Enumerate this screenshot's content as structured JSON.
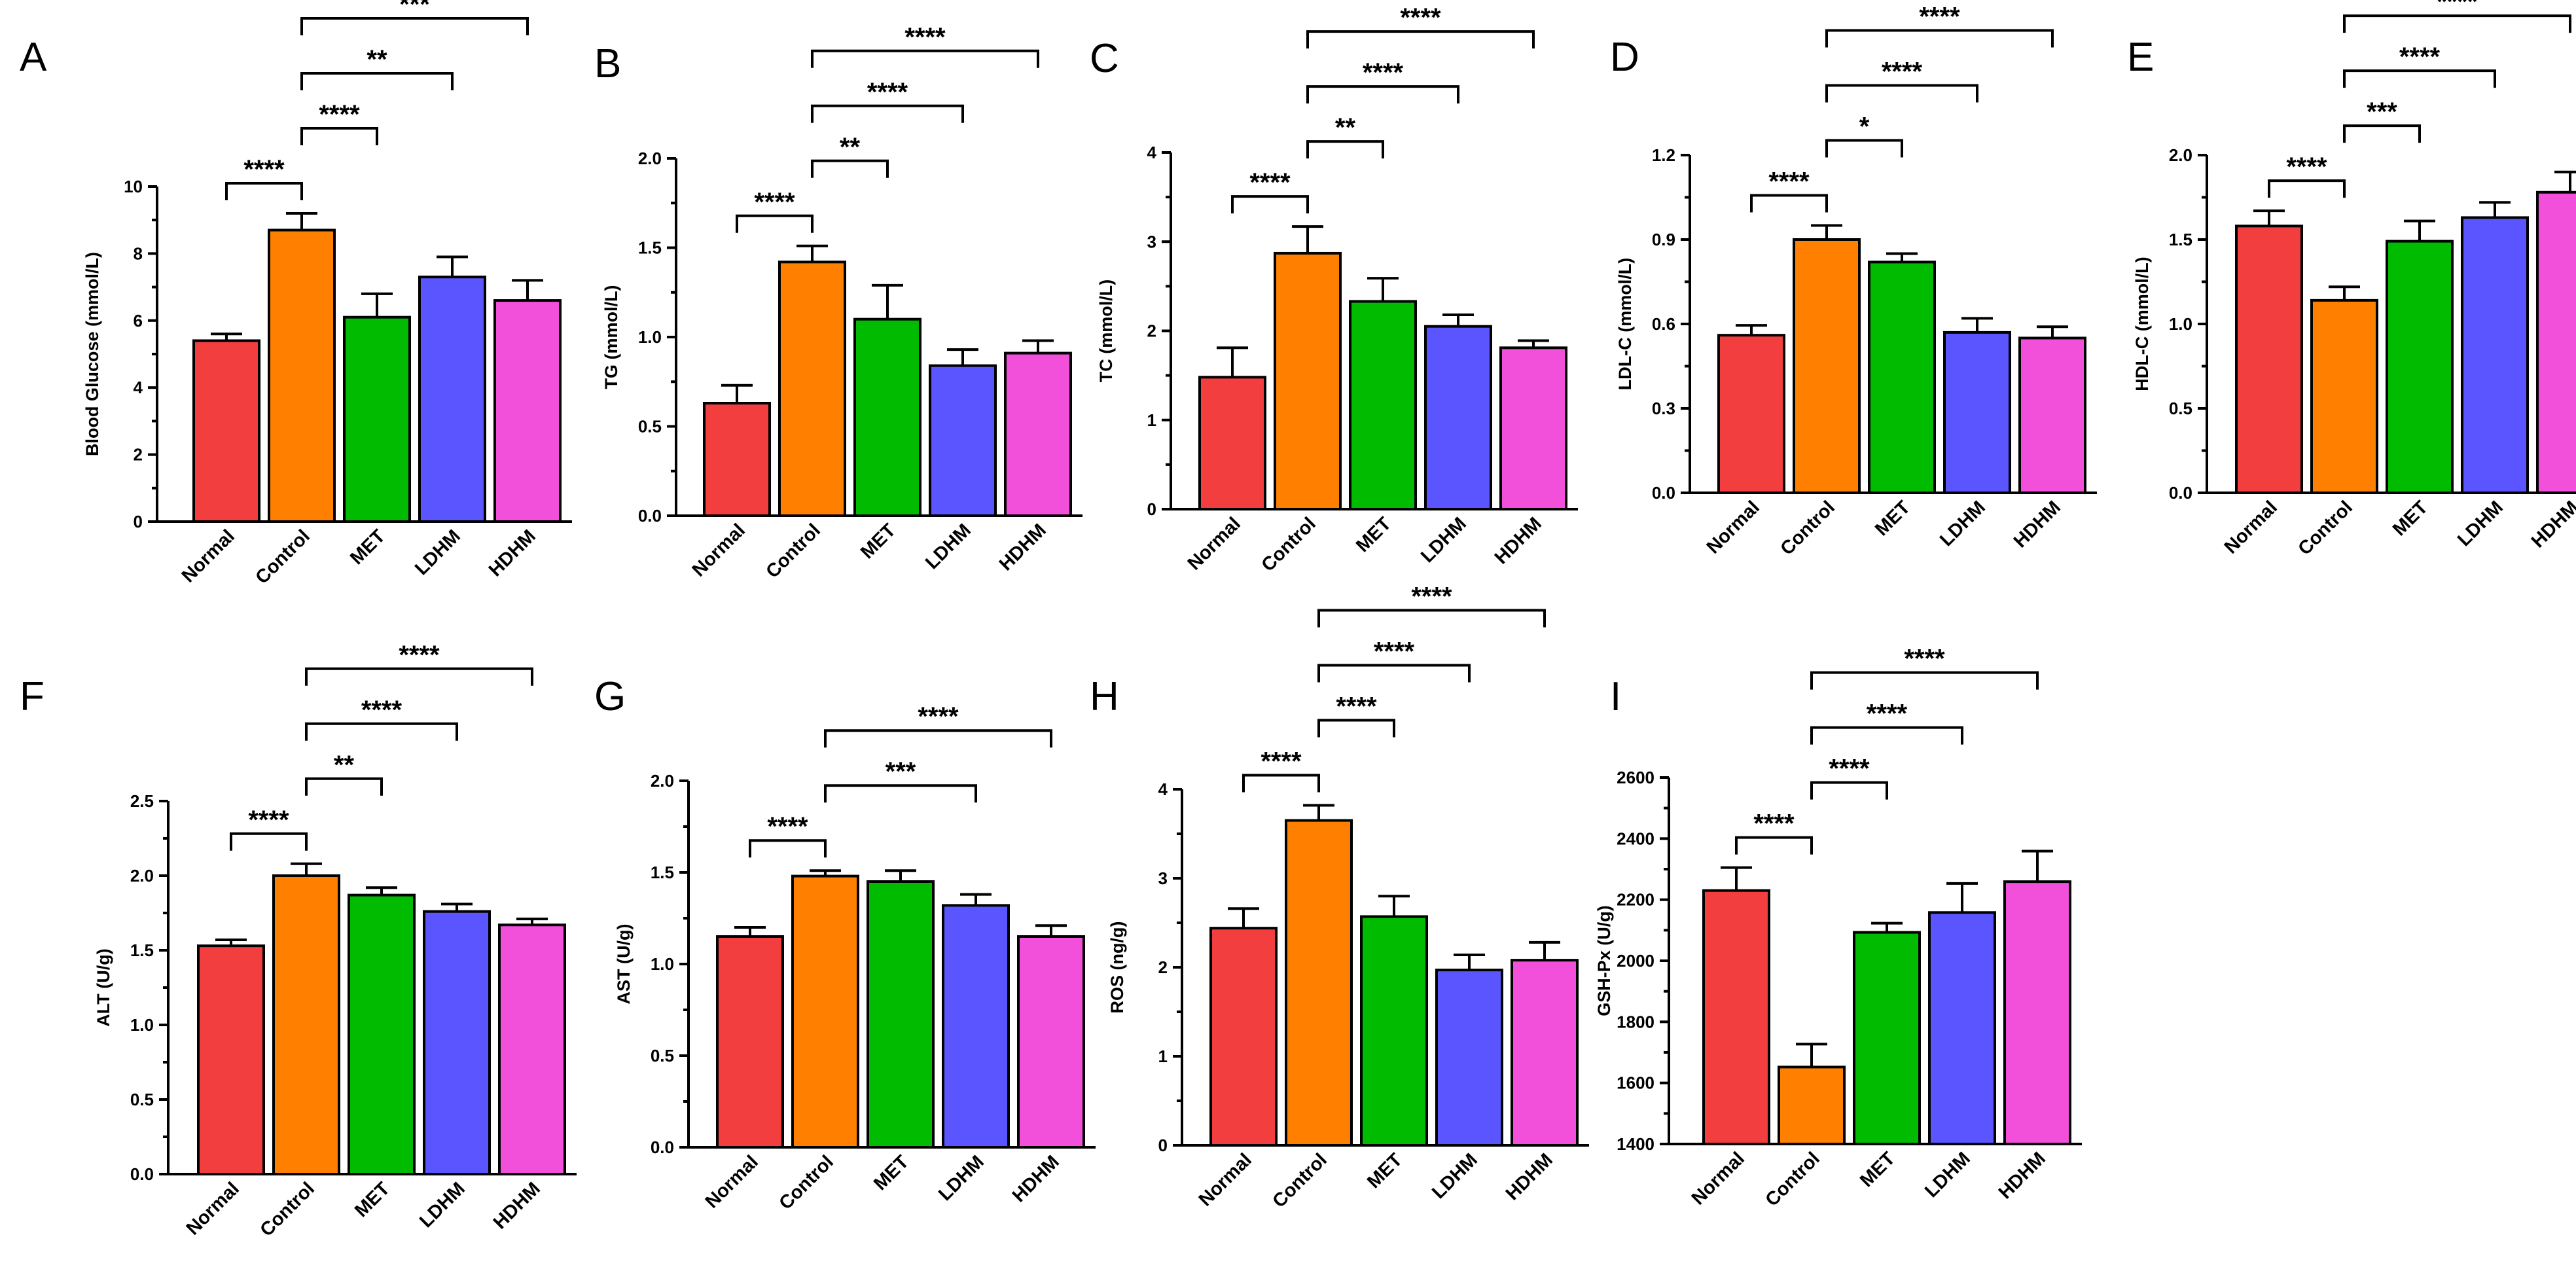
{
  "figure": {
    "bar_colors": [
      "#f33e40",
      "#ff7f00",
      "#00bb00",
      "#5a55ff",
      "#f24fdb"
    ]
  },
  "chart_data": [
    {
      "panel": "A",
      "type": "bar",
      "categories": [
        "Normal",
        "Control",
        "MET",
        "LDHM",
        "HDHM"
      ],
      "values": [
        5.4,
        8.7,
        6.1,
        7.3,
        6.6
      ],
      "errors": [
        0.2,
        0.5,
        0.7,
        0.6,
        0.6
      ],
      "ylabel": "Blood Glucose (mmol/L)",
      "ylim": [
        0,
        10
      ],
      "yticks": [
        0,
        2,
        4,
        6,
        8,
        10
      ],
      "ytick_labels": [
        "0",
        "2",
        "4",
        "6",
        "8",
        "10"
      ],
      "significance": [
        {
          "from": 0,
          "to": 1,
          "label": "****"
        },
        {
          "from": 1,
          "to": 2,
          "label": "****"
        },
        {
          "from": 1,
          "to": 3,
          "label": "**"
        },
        {
          "from": 1,
          "to": 4,
          "label": "***"
        }
      ]
    },
    {
      "panel": "B",
      "type": "bar",
      "categories": [
        "Normal",
        "Control",
        "MET",
        "LDHM",
        "HDHM"
      ],
      "values": [
        0.63,
        1.42,
        1.1,
        0.84,
        0.91
      ],
      "errors": [
        0.1,
        0.09,
        0.19,
        0.09,
        0.07
      ],
      "ylabel": "TG (mmol/L)",
      "ylim": [
        0,
        2
      ],
      "yticks": [
        0,
        0.5,
        1,
        1.5,
        2
      ],
      "ytick_labels": [
        "0.0",
        "0.5",
        "1.0",
        "1.5",
        "2.0"
      ],
      "significance": [
        {
          "from": 0,
          "to": 1,
          "label": "****"
        },
        {
          "from": 1,
          "to": 2,
          "label": "**"
        },
        {
          "from": 1,
          "to": 3,
          "label": "****"
        },
        {
          "from": 1,
          "to": 4,
          "label": "****"
        }
      ]
    },
    {
      "panel": "C",
      "type": "bar",
      "categories": [
        "Normal",
        "Control",
        "MET",
        "LDHM",
        "HDHM"
      ],
      "values": [
        1.48,
        2.87,
        2.33,
        2.05,
        1.81
      ],
      "errors": [
        0.33,
        0.3,
        0.26,
        0.13,
        0.08
      ],
      "ylabel": "TC (mmol/L)",
      "ylim": [
        0,
        4
      ],
      "yticks": [
        0,
        1,
        2,
        3,
        4
      ],
      "ytick_labels": [
        "0",
        "1",
        "2",
        "3",
        "4"
      ],
      "significance": [
        {
          "from": 0,
          "to": 1,
          "label": "****"
        },
        {
          "from": 1,
          "to": 2,
          "label": "**"
        },
        {
          "from": 1,
          "to": 3,
          "label": "****"
        },
        {
          "from": 1,
          "to": 4,
          "label": "****"
        }
      ]
    },
    {
      "panel": "D",
      "type": "bar",
      "categories": [
        "Normal",
        "Control",
        "MET",
        "LDHM",
        "HDHM"
      ],
      "values": [
        0.56,
        0.9,
        0.82,
        0.57,
        0.55
      ],
      "errors": [
        0.035,
        0.05,
        0.03,
        0.05,
        0.04
      ],
      "ylabel": "LDL-C (mmol/L)",
      "ylim": [
        0,
        1.2
      ],
      "yticks": [
        0,
        0.3,
        0.6,
        0.9,
        1.2
      ],
      "ytick_labels": [
        "0.0",
        "0.3",
        "0.6",
        "0.9",
        "1.2"
      ],
      "significance": [
        {
          "from": 0,
          "to": 1,
          "label": "****"
        },
        {
          "from": 1,
          "to": 2,
          "label": "*"
        },
        {
          "from": 1,
          "to": 3,
          "label": "****"
        },
        {
          "from": 1,
          "to": 4,
          "label": "****"
        }
      ]
    },
    {
      "panel": "E",
      "type": "bar",
      "categories": [
        "Normal",
        "Control",
        "MET",
        "LDHM",
        "HDHM"
      ],
      "values": [
        1.58,
        1.14,
        1.49,
        1.63,
        1.78
      ],
      "errors": [
        0.09,
        0.08,
        0.12,
        0.09,
        0.12
      ],
      "ylabel": "HDL-C (mmol/L)",
      "ylim": [
        0,
        2
      ],
      "yticks": [
        0,
        0.5,
        1,
        1.5,
        2
      ],
      "ytick_labels": [
        "0.0",
        "0.5",
        "1.0",
        "1.5",
        "2.0"
      ],
      "significance": [
        {
          "from": 0,
          "to": 1,
          "label": "****"
        },
        {
          "from": 1,
          "to": 2,
          "label": "***"
        },
        {
          "from": 1,
          "to": 3,
          "label": "****"
        },
        {
          "from": 1,
          "to": 4,
          "label": "****"
        }
      ]
    },
    {
      "panel": "F",
      "type": "bar",
      "categories": [
        "Normal",
        "Control",
        "MET",
        "LDHM",
        "HDHM"
      ],
      "values": [
        1.53,
        2.0,
        1.87,
        1.76,
        1.67
      ],
      "errors": [
        0.04,
        0.08,
        0.05,
        0.05,
        0.04
      ],
      "ylabel": "ALT (U/g)",
      "ylim": [
        0,
        2.5
      ],
      "yticks": [
        0,
        0.5,
        1,
        1.5,
        2,
        2.5
      ],
      "ytick_labels": [
        "0.0",
        "0.5",
        "1.0",
        "1.5",
        "2.0",
        "2.5"
      ],
      "significance": [
        {
          "from": 0,
          "to": 1,
          "label": "****"
        },
        {
          "from": 1,
          "to": 2,
          "label": "**"
        },
        {
          "from": 1,
          "to": 3,
          "label": "****"
        },
        {
          "from": 1,
          "to": 4,
          "label": "****"
        }
      ]
    },
    {
      "panel": "G",
      "type": "bar",
      "categories": [
        "Normal",
        "Control",
        "MET",
        "LDHM",
        "HDHM"
      ],
      "values": [
        1.15,
        1.48,
        1.45,
        1.32,
        1.15
      ],
      "errors": [
        0.05,
        0.03,
        0.06,
        0.06,
        0.06
      ],
      "ylabel": "AST (U/g)",
      "ylim": [
        0,
        2
      ],
      "yticks": [
        0,
        0.5,
        1,
        1.5,
        2
      ],
      "ytick_labels": [
        "0.0",
        "0.5",
        "1.0",
        "1.5",
        "2.0"
      ],
      "significance": [
        {
          "from": 0,
          "to": 1,
          "label": "****"
        },
        {
          "from": 1,
          "to": 3,
          "label": "***"
        },
        {
          "from": 1,
          "to": 4,
          "label": "****"
        }
      ]
    },
    {
      "panel": "H",
      "type": "bar",
      "categories": [
        "Normal",
        "Control",
        "MET",
        "LDHM",
        "HDHM"
      ],
      "values": [
        2.44,
        3.65,
        2.57,
        1.97,
        2.08
      ],
      "errors": [
        0.22,
        0.17,
        0.23,
        0.17,
        0.2
      ],
      "ylabel": "ROS (ng/g)",
      "ylim": [
        0,
        4
      ],
      "yticks": [
        0,
        1,
        2,
        3,
        4
      ],
      "ytick_labels": [
        "0",
        "1",
        "2",
        "3",
        "4"
      ],
      "significance": [
        {
          "from": 0,
          "to": 1,
          "label": "****"
        },
        {
          "from": 1,
          "to": 2,
          "label": "****"
        },
        {
          "from": 1,
          "to": 3,
          "label": "****"
        },
        {
          "from": 1,
          "to": 4,
          "label": "****"
        }
      ]
    },
    {
      "panel": "I",
      "type": "bar",
      "categories": [
        "Normal",
        "Control",
        "MET",
        "LDHM",
        "HDHM"
      ],
      "values": [
        2230,
        1652,
        2093,
        2158,
        2259
      ],
      "errors": [
        75,
        75,
        30,
        95,
        100
      ],
      "ylabel": "GSH-Px (U/g)",
      "ylim": [
        1400,
        2600
      ],
      "yticks": [
        1400,
        1600,
        1800,
        2000,
        2200,
        2400,
        2600
      ],
      "ytick_labels": [
        "1400",
        "1600",
        "1800",
        "2000",
        "2200",
        "2400",
        "2600"
      ],
      "significance": [
        {
          "from": 0,
          "to": 1,
          "label": "****"
        },
        {
          "from": 1,
          "to": 2,
          "label": "****"
        },
        {
          "from": 1,
          "to": 3,
          "label": "****"
        },
        {
          "from": 1,
          "to": 4,
          "label": "****"
        }
      ]
    }
  ]
}
